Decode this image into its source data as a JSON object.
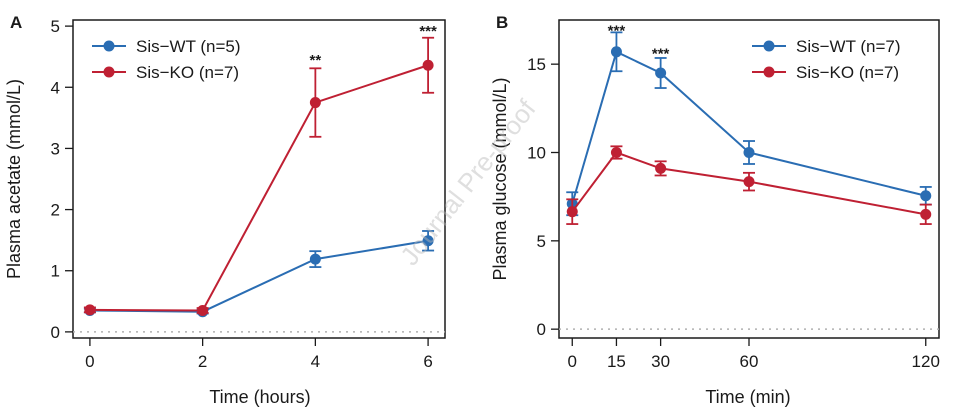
{
  "figure": {
    "watermark": "Journal Pre-proof",
    "colors": {
      "wt": "#2a6db3",
      "ko": "#bf2033",
      "zero_line": "#b0b0b0",
      "axis": "#1a1a1a"
    }
  },
  "chart_data": [
    {
      "panel": "A",
      "type": "line",
      "xlabel": "Time (hours)",
      "ylabel": "Plasma acetate (mmol/L)",
      "xlim": [
        -0.3,
        6.3
      ],
      "ylim": [
        -0.1,
        5.1
      ],
      "xticks": [
        0,
        2,
        4,
        6
      ],
      "yticks": [
        0,
        1,
        2,
        3,
        4,
        5
      ],
      "zero_line": true,
      "legend_position": "top-left",
      "x": [
        0,
        2,
        4,
        6
      ],
      "series": [
        {
          "name": "Sis−WT (n=5)",
          "color": "#2a6db3",
          "values": [
            0.35,
            0.33,
            1.19,
            1.49
          ],
          "errors": [
            0.03,
            0.03,
            0.13,
            0.16
          ]
        },
        {
          "name": "Sis−KO (n=7)",
          "color": "#bf2033",
          "values": [
            0.36,
            0.35,
            3.75,
            4.36
          ],
          "errors": [
            0.04,
            0.04,
            0.56,
            0.45
          ]
        }
      ],
      "annotations": [
        {
          "x": 4,
          "y": 4.45,
          "text": "**"
        },
        {
          "x": 6,
          "y": 4.92,
          "text": "***"
        }
      ]
    },
    {
      "panel": "B",
      "type": "line",
      "xlabel": "Time (min)",
      "ylabel": "Plasma glucose (mmol/L)",
      "xlim": [
        -4.5,
        124.5
      ],
      "ylim": [
        -0.5,
        17.5
      ],
      "xticks": [
        0,
        15,
        30,
        60,
        120
      ],
      "yticks": [
        0,
        5,
        10,
        15
      ],
      "zero_line": true,
      "legend_position": "top-right",
      "x": [
        0,
        15,
        30,
        60,
        120
      ],
      "series": [
        {
          "name": "Sis−WT (n=7)",
          "color": "#2a6db3",
          "values": [
            7.1,
            15.7,
            14.5,
            10.0,
            7.55
          ],
          "errors": [
            0.65,
            1.1,
            0.85,
            0.65,
            0.5
          ]
        },
        {
          "name": "Sis−KO (n=7)",
          "color": "#bf2033",
          "values": [
            6.65,
            10.0,
            9.1,
            8.35,
            6.5
          ],
          "errors": [
            0.7,
            0.35,
            0.4,
            0.5,
            0.55
          ]
        }
      ],
      "annotations": [
        {
          "x": 15,
          "y": 16.9,
          "text": "***"
        },
        {
          "x": 30,
          "y": 15.6,
          "text": "***"
        }
      ]
    }
  ]
}
